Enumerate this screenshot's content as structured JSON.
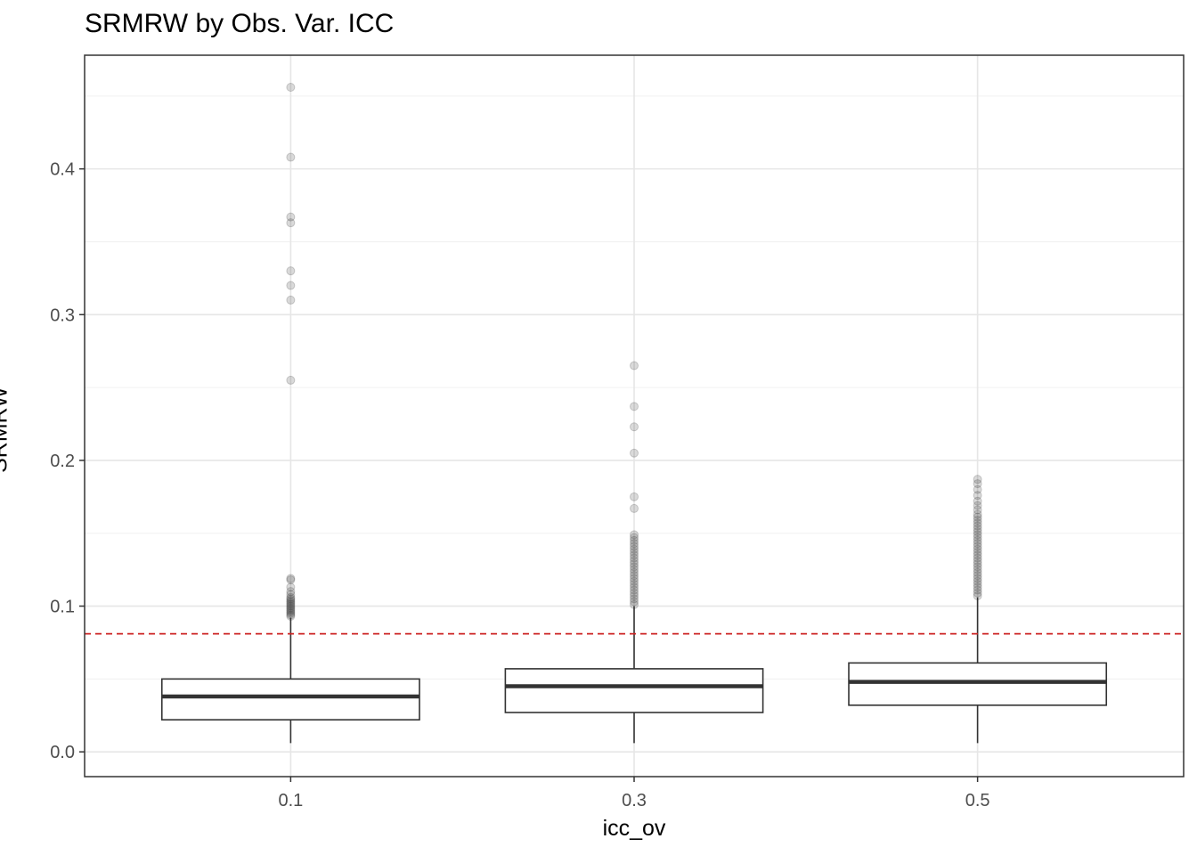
{
  "chart_data": {
    "type": "box",
    "title": "SRMRW by Obs. Var. ICC",
    "xlabel": "icc_ov",
    "ylabel": "SRMRW",
    "categories": [
      "0.1",
      "0.3",
      "0.5"
    ],
    "ylim": [
      -0.017,
      0.478
    ],
    "y_ticks": [
      0.0,
      0.1,
      0.2,
      0.3,
      0.4
    ],
    "y_tick_labels": [
      "0.0",
      "0.1",
      "0.2",
      "0.3",
      "0.4"
    ],
    "grid": true,
    "reference_line": {
      "y": 0.081,
      "style": "dashed",
      "color": "#cc2222"
    },
    "boxes": [
      {
        "category": "0.1",
        "min": 0.006,
        "q1": 0.022,
        "median": 0.038,
        "q3": 0.05,
        "max": 0.092,
        "outliers": [
          0.456,
          0.408,
          0.367,
          0.363,
          0.33,
          0.32,
          0.31,
          0.255,
          0.119,
          0.118,
          0.113,
          0.11,
          0.108,
          0.106,
          0.105,
          0.104,
          0.103,
          0.102,
          0.101,
          0.1,
          0.099,
          0.098,
          0.097,
          0.096,
          0.095,
          0.094,
          0.093
        ]
      },
      {
        "category": "0.3",
        "min": 0.006,
        "q1": 0.027,
        "median": 0.045,
        "q3": 0.057,
        "max": 0.1,
        "outliers": [
          0.265,
          0.237,
          0.223,
          0.205,
          0.175,
          0.167,
          0.149,
          0.147,
          0.145,
          0.143,
          0.141,
          0.139,
          0.137,
          0.135,
          0.133,
          0.131,
          0.129,
          0.127,
          0.125,
          0.123,
          0.121,
          0.119,
          0.117,
          0.115,
          0.113,
          0.111,
          0.109,
          0.107,
          0.105,
          0.103,
          0.101
        ]
      },
      {
        "category": "0.5",
        "min": 0.006,
        "q1": 0.032,
        "median": 0.048,
        "q3": 0.061,
        "max": 0.106,
        "outliers": [
          0.187,
          0.184,
          0.18,
          0.176,
          0.172,
          0.169,
          0.166,
          0.163,
          0.161,
          0.159,
          0.157,
          0.155,
          0.153,
          0.151,
          0.149,
          0.147,
          0.145,
          0.143,
          0.141,
          0.139,
          0.137,
          0.135,
          0.133,
          0.131,
          0.129,
          0.127,
          0.125,
          0.123,
          0.121,
          0.119,
          0.117,
          0.115,
          0.113,
          0.111,
          0.109,
          0.107
        ]
      }
    ]
  }
}
